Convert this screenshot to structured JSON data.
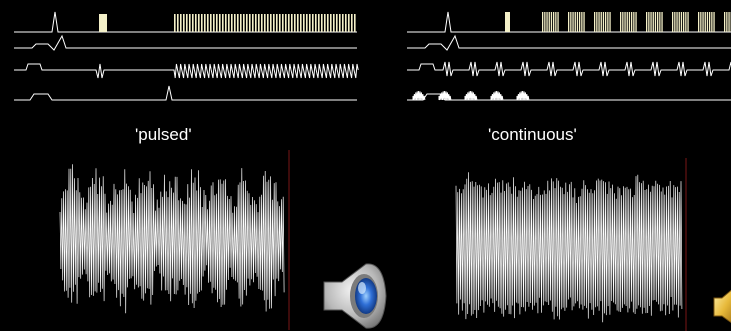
{
  "panels": [
    {
      "id": "pulsed",
      "label": "'pulsed'",
      "trace_color": "#ffffff",
      "marker_color": "#f4f0c8",
      "cursor_color": "#ff3030",
      "speaker_icon": "speaker-icon"
    },
    {
      "id": "continuous",
      "label": "'continuous'",
      "trace_color": "#ffffff",
      "marker_color": "#f4f0c8",
      "cursor_color": "#ff3030",
      "speaker_icon": "speaker-icon"
    }
  ]
}
